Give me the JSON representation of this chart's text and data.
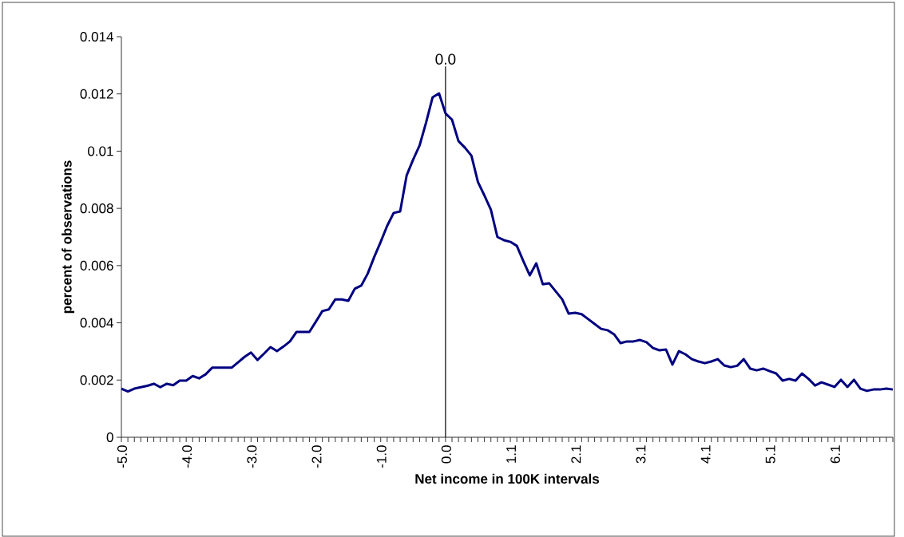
{
  "chart_data": {
    "type": "line",
    "xlabel": "Net income in 100K intervals",
    "ylabel": "percent of observations",
    "categories": [
      "-5.0",
      null,
      null,
      null,
      null,
      null,
      null,
      null,
      null,
      null,
      "-4.0",
      null,
      null,
      null,
      null,
      null,
      null,
      null,
      null,
      null,
      "-3.0",
      null,
      null,
      null,
      null,
      null,
      null,
      null,
      null,
      null,
      "-2.0",
      null,
      null,
      null,
      null,
      null,
      null,
      null,
      null,
      null,
      "-1.0",
      null,
      null,
      null,
      null,
      null,
      null,
      null,
      null,
      null,
      "0.0",
      null,
      null,
      null,
      null,
      null,
      null,
      null,
      null,
      null,
      "1.1",
      null,
      null,
      null,
      null,
      null,
      null,
      null,
      null,
      null,
      "2.1",
      null,
      null,
      null,
      null,
      null,
      null,
      null,
      null,
      null,
      "3.1",
      null,
      null,
      null,
      null,
      null,
      null,
      null,
      null,
      null,
      "4.1",
      null,
      null,
      null,
      null,
      null,
      null,
      null,
      null,
      null,
      "5.1",
      null,
      null,
      null,
      null,
      null,
      null,
      null,
      null,
      null,
      "6.1",
      null,
      null,
      null,
      null,
      null,
      null,
      null,
      null,
      null
    ],
    "values": [
      0.0017,
      0.0016,
      0.0017,
      0.00175,
      0.0018,
      0.00187,
      0.00175,
      0.00187,
      0.00182,
      0.00198,
      0.00198,
      0.00214,
      0.00206,
      0.0022,
      0.00243,
      0.00243,
      0.00243,
      0.00243,
      0.00262,
      0.00281,
      0.00296,
      0.0027,
      0.00292,
      0.00315,
      0.00301,
      0.00317,
      0.00335,
      0.00368,
      0.00368,
      0.00368,
      0.00404,
      0.00441,
      0.00447,
      0.00482,
      0.00482,
      0.00477,
      0.00519,
      0.0053,
      0.00572,
      0.0063,
      0.00683,
      0.00739,
      0.00784,
      0.00789,
      0.00915,
      0.0097,
      0.0102,
      0.011,
      0.01188,
      0.01202,
      0.01132,
      0.0111,
      0.01035,
      0.01012,
      0.00984,
      0.00892,
      0.00845,
      0.00795,
      0.007,
      0.00689,
      0.00683,
      0.00669,
      0.00616,
      0.00566,
      0.00608,
      0.00535,
      0.00538,
      0.0051,
      0.00482,
      0.00432,
      0.00435,
      0.0043,
      0.00413,
      0.00396,
      0.00379,
      0.00374,
      0.0036,
      0.00329,
      0.00335,
      0.00335,
      0.0034,
      0.00332,
      0.00312,
      0.00304,
      0.00307,
      0.00254,
      0.00301,
      0.0029,
      0.00273,
      0.00265,
      0.00259,
      0.00265,
      0.00273,
      0.00251,
      0.00245,
      0.0025,
      0.00273,
      0.0024,
      0.00234,
      0.0024,
      0.00231,
      0.00223,
      0.00198,
      0.00204,
      0.00198,
      0.00223,
      0.00204,
      0.00181,
      0.00192,
      0.00184,
      0.00176,
      0.00201,
      0.00176,
      0.00201,
      0.0017,
      0.00162,
      0.00167,
      0.00167,
      0.0017,
      0.00167
    ],
    "color": "#000080",
    "ylim": [
      0,
      0.014
    ],
    "yticks": [
      0,
      0.002,
      0.004,
      0.006,
      0.008,
      0.01,
      0.012,
      0.014
    ],
    "ref_lines": [
      {
        "axis": "x",
        "value": "0.0",
        "label": "0.0",
        "color": "#000000"
      }
    ]
  }
}
